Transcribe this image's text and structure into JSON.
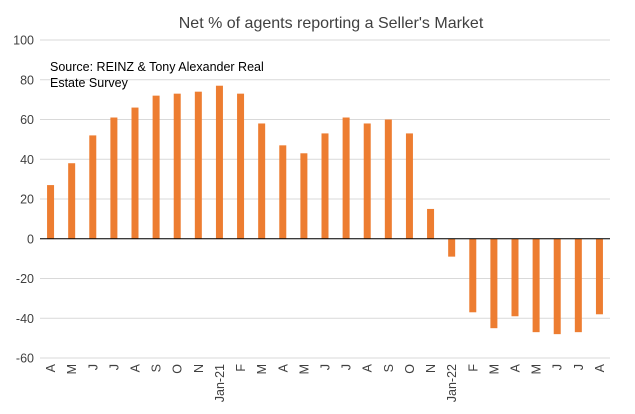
{
  "chart_data": {
    "type": "bar",
    "title": "Net % of agents reporting a Seller's Market",
    "annotation": [
      "Source: REINZ & Tony Alexander Real",
      "Estate Survey"
    ],
    "xlabel": "",
    "ylabel": "",
    "ylim": [
      -60,
      100
    ],
    "yticks": [
      -60,
      -40,
      -20,
      0,
      20,
      40,
      60,
      80,
      100
    ],
    "grid": true,
    "legend": "none",
    "categories": [
      "A",
      "M",
      "J",
      "J",
      "A",
      "S",
      "O",
      "N",
      "Jan-21",
      "F",
      "M",
      "A",
      "M",
      "J",
      "J",
      "A",
      "S",
      "O",
      "N",
      "Jan-22",
      "F",
      "M",
      "A",
      "M",
      "J",
      "J",
      "A"
    ],
    "values": [
      27,
      38,
      52,
      61,
      66,
      72,
      73,
      74,
      77,
      73,
      58,
      47,
      43,
      53,
      61,
      58,
      60,
      53,
      15,
      -9,
      -37,
      -45,
      -39,
      -47,
      -48,
      -47,
      -38
    ],
    "colors": {
      "bar": "#ED7D31",
      "grid": "#D9D9D9",
      "axis": "#000000",
      "text": "#404040"
    }
  }
}
